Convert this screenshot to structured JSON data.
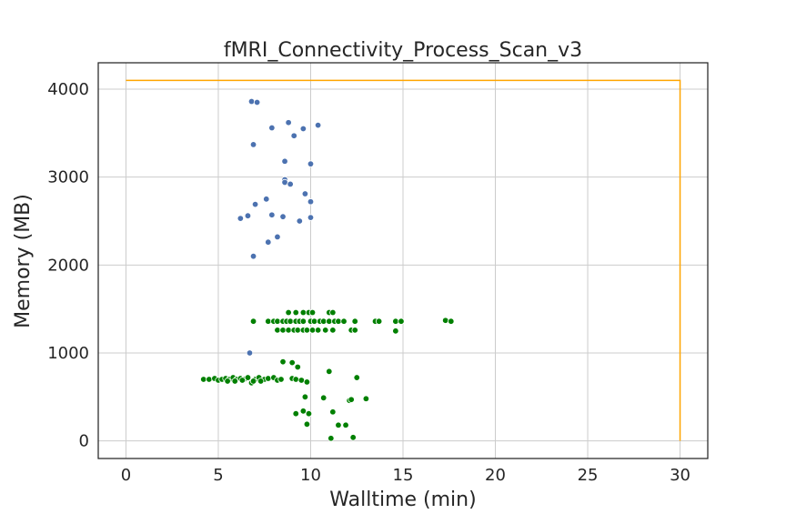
{
  "chart_data": {
    "type": "scatter",
    "title": "fMRI_Connectivity_Process_Scan_v3",
    "xlabel": "Walltime (min)",
    "ylabel": "Memory (MB)",
    "xlim": [
      -1.5,
      31.5
    ],
    "ylim": [
      -200,
      4300
    ],
    "xticks": [
      0,
      5,
      10,
      15,
      20,
      25,
      30
    ],
    "yticks": [
      0,
      1000,
      2000,
      3000,
      4000
    ],
    "grid": true,
    "limit_line": {
      "color": "#ffa500",
      "points": [
        [
          0,
          4100
        ],
        [
          30,
          4100
        ],
        [
          30,
          0
        ]
      ]
    },
    "series": [
      {
        "color": "#4c72b0",
        "points": [
          [
            6.8,
            3860
          ],
          [
            7.1,
            3850
          ],
          [
            8.8,
            3620
          ],
          [
            10.4,
            3590
          ],
          [
            7.9,
            3560
          ],
          [
            9.6,
            3550
          ],
          [
            9.1,
            3470
          ],
          [
            6.9,
            3370
          ],
          [
            8.6,
            3180
          ],
          [
            10.0,
            3150
          ],
          [
            8.6,
            2970
          ],
          [
            8.6,
            2940
          ],
          [
            8.9,
            2920
          ],
          [
            9.7,
            2810
          ],
          [
            7.6,
            2750
          ],
          [
            10.0,
            2720
          ],
          [
            7.0,
            2690
          ],
          [
            7.9,
            2570
          ],
          [
            6.6,
            2560
          ],
          [
            8.5,
            2550
          ],
          [
            6.2,
            2530
          ],
          [
            10.0,
            2540
          ],
          [
            9.4,
            2500
          ],
          [
            8.2,
            2320
          ],
          [
            7.7,
            2260
          ],
          [
            6.9,
            2100
          ],
          [
            6.7,
            1000
          ]
        ]
      },
      {
        "color": "#008000",
        "points": [
          [
            8.8,
            1460
          ],
          [
            9.2,
            1460
          ],
          [
            9.6,
            1460
          ],
          [
            9.9,
            1460
          ],
          [
            10.1,
            1460
          ],
          [
            11.0,
            1460
          ],
          [
            11.2,
            1460
          ],
          [
            6.9,
            1360
          ],
          [
            7.7,
            1360
          ],
          [
            8.0,
            1360
          ],
          [
            8.2,
            1360
          ],
          [
            8.5,
            1360
          ],
          [
            8.7,
            1360
          ],
          [
            8.9,
            1360
          ],
          [
            9.2,
            1360
          ],
          [
            9.4,
            1360
          ],
          [
            9.6,
            1360
          ],
          [
            10.0,
            1360
          ],
          [
            10.2,
            1360
          ],
          [
            10.5,
            1360
          ],
          [
            10.7,
            1360
          ],
          [
            11.0,
            1360
          ],
          [
            11.3,
            1360
          ],
          [
            11.5,
            1360
          ],
          [
            11.8,
            1360
          ],
          [
            12.4,
            1360
          ],
          [
            13.5,
            1360
          ],
          [
            13.7,
            1360
          ],
          [
            14.6,
            1360
          ],
          [
            14.9,
            1360
          ],
          [
            17.3,
            1370
          ],
          [
            17.6,
            1360
          ],
          [
            8.2,
            1260
          ],
          [
            8.5,
            1260
          ],
          [
            8.8,
            1260
          ],
          [
            9.1,
            1260
          ],
          [
            9.3,
            1260
          ],
          [
            9.6,
            1260
          ],
          [
            9.8,
            1260
          ],
          [
            10.1,
            1260
          ],
          [
            10.4,
            1260
          ],
          [
            10.8,
            1260
          ],
          [
            11.2,
            1260
          ],
          [
            12.2,
            1260
          ],
          [
            12.4,
            1260
          ],
          [
            14.6,
            1250
          ],
          [
            8.5,
            900
          ],
          [
            9.0,
            890
          ],
          [
            9.3,
            840
          ],
          [
            4.2,
            700
          ],
          [
            4.5,
            700
          ],
          [
            4.8,
            710
          ],
          [
            5.0,
            690
          ],
          [
            5.2,
            700
          ],
          [
            5.4,
            710
          ],
          [
            5.6,
            700
          ],
          [
            5.8,
            720
          ],
          [
            6.0,
            700
          ],
          [
            6.2,
            710
          ],
          [
            6.4,
            700
          ],
          [
            6.6,
            720
          ],
          [
            6.8,
            660
          ],
          [
            7.0,
            700
          ],
          [
            7.2,
            720
          ],
          [
            7.5,
            700
          ],
          [
            7.7,
            710
          ],
          [
            8.0,
            720
          ],
          [
            8.2,
            690
          ],
          [
            8.4,
            700
          ],
          [
            5.5,
            680
          ],
          [
            5.9,
            680
          ],
          [
            6.3,
            690
          ],
          [
            6.9,
            680
          ],
          [
            7.3,
            680
          ],
          [
            9.0,
            710
          ],
          [
            9.2,
            700
          ],
          [
            9.5,
            690
          ],
          [
            9.8,
            670
          ],
          [
            11.0,
            790
          ],
          [
            12.5,
            720
          ],
          [
            9.7,
            500
          ],
          [
            10.7,
            490
          ],
          [
            12.1,
            460
          ],
          [
            12.2,
            470
          ],
          [
            13.0,
            480
          ],
          [
            9.6,
            340
          ],
          [
            9.2,
            310
          ],
          [
            9.9,
            310
          ],
          [
            11.2,
            330
          ],
          [
            9.8,
            190
          ],
          [
            11.5,
            180
          ],
          [
            11.9,
            180
          ],
          [
            11.1,
            30
          ],
          [
            12.3,
            40
          ]
        ]
      }
    ]
  }
}
